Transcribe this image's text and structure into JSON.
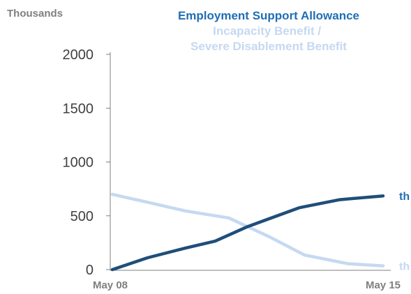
{
  "chart_data": {
    "type": "line",
    "unit_label": "Thousands",
    "x": [
      "May 08",
      "",
      "",
      "",
      "",
      "",
      "",
      "",
      "",
      "",
      "",
      "",
      "",
      "",
      "",
      "",
      "",
      "",
      "",
      "",
      "",
      "",
      "",
      "",
      "",
      "",
      "",
      "",
      "",
      "May 15"
    ],
    "x_tick_labels": [
      "May 08",
      "May 15"
    ],
    "ylim": [
      0,
      2000
    ],
    "y_ticks": [
      "0",
      "500",
      "1000",
      "1500",
      "2000"
    ],
    "grid": false,
    "legend_position": "top-center",
    "series": [
      {
        "name": "Employment Support Allowance",
        "color": "#1f4e79",
        "legend_color": "#1f6eb5",
        "end_label": "th",
        "points": [
          [
            0,
            0
          ],
          [
            0.13,
            110
          ],
          [
            0.27,
            200
          ],
          [
            0.38,
            265
          ],
          [
            0.5,
            400
          ],
          [
            0.69,
            575
          ],
          [
            0.84,
            650
          ],
          [
            1,
            685
          ]
        ]
      },
      {
        "name": "Incapacity Benefit / Severe Disablement Benefit",
        "color": "#c5d9f1",
        "legend_color": "#c5d9f1",
        "end_label": "th",
        "points": [
          [
            0,
            700
          ],
          [
            0.14,
            620
          ],
          [
            0.27,
            545
          ],
          [
            0.43,
            480
          ],
          [
            0.58,
            305
          ],
          [
            0.71,
            135
          ],
          [
            0.87,
            55
          ],
          [
            1,
            35
          ]
        ]
      }
    ]
  }
}
